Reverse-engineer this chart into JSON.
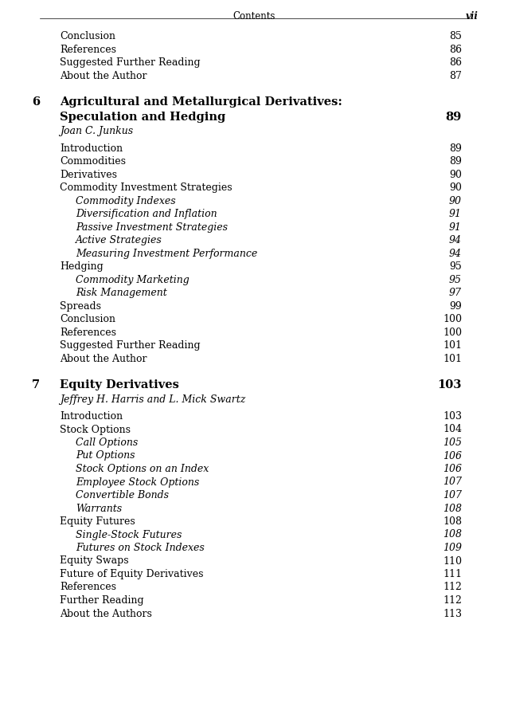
{
  "header_left": "Contents",
  "header_right": "vii",
  "background_color": "#ffffff",
  "text_color": "#000000",
  "entries": [
    {
      "indent": 0,
      "text": "Conclusion",
      "page": "85",
      "style": "normal"
    },
    {
      "indent": 0,
      "text": "References",
      "page": "86",
      "style": "normal"
    },
    {
      "indent": 0,
      "text": "Suggested Further Reading",
      "page": "86",
      "style": "normal"
    },
    {
      "indent": 0,
      "text": "About the Author",
      "page": "87",
      "style": "normal"
    },
    {
      "indent": -1,
      "text": "",
      "page": "",
      "style": "spacer"
    },
    {
      "indent": -1,
      "text": "",
      "page": "",
      "style": "spacer"
    },
    {
      "indent": -2,
      "text": "6",
      "text2": "Agricultural and Metallurgical Derivatives:",
      "page": "",
      "style": "chapter"
    },
    {
      "indent": -2,
      "text": "",
      "text2": "Speculation and Hedging",
      "page": "89",
      "style": "chapter2"
    },
    {
      "indent": -2,
      "text": "",
      "text2": "Joan C. Junkus",
      "page": "",
      "style": "author"
    },
    {
      "indent": -1,
      "text": "",
      "page": "",
      "style": "spacer_small"
    },
    {
      "indent": 0,
      "text": "Introduction",
      "page": "89",
      "style": "normal"
    },
    {
      "indent": 0,
      "text": "Commodities",
      "page": "89",
      "style": "normal"
    },
    {
      "indent": 0,
      "text": "Derivatives",
      "page": "90",
      "style": "normal"
    },
    {
      "indent": 0,
      "text": "Commodity Investment Strategies",
      "page": "90",
      "style": "normal"
    },
    {
      "indent": 1,
      "text": "Commodity Indexes",
      "page": "90",
      "style": "italic"
    },
    {
      "indent": 1,
      "text": "Diversification and Inflation",
      "page": "91",
      "style": "italic"
    },
    {
      "indent": 1,
      "text": "Passive Investment Strategies",
      "page": "91",
      "style": "italic"
    },
    {
      "indent": 1,
      "text": "Active Strategies",
      "page": "94",
      "style": "italic"
    },
    {
      "indent": 1,
      "text": "Measuring Investment Performance",
      "page": "94",
      "style": "italic"
    },
    {
      "indent": 0,
      "text": "Hedging",
      "page": "95",
      "style": "normal"
    },
    {
      "indent": 1,
      "text": "Commodity Marketing",
      "page": "95",
      "style": "italic"
    },
    {
      "indent": 1,
      "text": "Risk Management",
      "page": "97",
      "style": "italic"
    },
    {
      "indent": 0,
      "text": "Spreads",
      "page": "99",
      "style": "normal"
    },
    {
      "indent": 0,
      "text": "Conclusion",
      "page": "100",
      "style": "normal"
    },
    {
      "indent": 0,
      "text": "References",
      "page": "100",
      "style": "normal"
    },
    {
      "indent": 0,
      "text": "Suggested Further Reading",
      "page": "101",
      "style": "normal"
    },
    {
      "indent": 0,
      "text": "About the Author",
      "page": "101",
      "style": "normal"
    },
    {
      "indent": -1,
      "text": "",
      "page": "",
      "style": "spacer"
    },
    {
      "indent": -1,
      "text": "",
      "page": "",
      "style": "spacer"
    },
    {
      "indent": -2,
      "text": "7",
      "text2": "Equity Derivatives",
      "page": "103",
      "style": "chapter"
    },
    {
      "indent": -2,
      "text": "",
      "text2": "Jeffrey H. Harris and L. Mick Swartz",
      "page": "",
      "style": "author"
    },
    {
      "indent": -1,
      "text": "",
      "page": "",
      "style": "spacer_small"
    },
    {
      "indent": 0,
      "text": "Introduction",
      "page": "103",
      "style": "normal"
    },
    {
      "indent": 0,
      "text": "Stock Options",
      "page": "104",
      "style": "normal"
    },
    {
      "indent": 1,
      "text": "Call Options",
      "page": "105",
      "style": "italic"
    },
    {
      "indent": 1,
      "text": "Put Options",
      "page": "106",
      "style": "italic"
    },
    {
      "indent": 1,
      "text": "Stock Options on an Index",
      "page": "106",
      "style": "italic"
    },
    {
      "indent": 1,
      "text": "Employee Stock Options",
      "page": "107",
      "style": "italic"
    },
    {
      "indent": 1,
      "text": "Convertible Bonds",
      "page": "107",
      "style": "italic"
    },
    {
      "indent": 1,
      "text": "Warrants",
      "page": "108",
      "style": "italic"
    },
    {
      "indent": 0,
      "text": "Equity Futures",
      "page": "108",
      "style": "normal"
    },
    {
      "indent": 1,
      "text": "Single-Stock Futures",
      "page": "108",
      "style": "italic"
    },
    {
      "indent": 1,
      "text": "Futures on Stock Indexes",
      "page": "109",
      "style": "italic"
    },
    {
      "indent": 0,
      "text": "Equity Swaps",
      "page": "110",
      "style": "normal"
    },
    {
      "indent": 0,
      "text": "Future of Equity Derivatives",
      "page": "111",
      "style": "normal"
    },
    {
      "indent": 0,
      "text": "References",
      "page": "112",
      "style": "normal"
    },
    {
      "indent": 0,
      "text": "Further Reading",
      "page": "112",
      "style": "normal"
    },
    {
      "indent": 0,
      "text": "About the Authors",
      "page": "113",
      "style": "normal"
    }
  ]
}
